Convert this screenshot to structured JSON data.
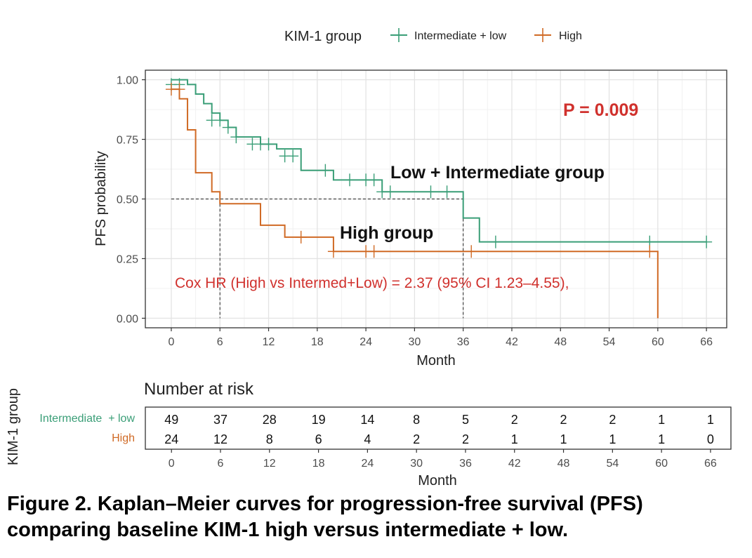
{
  "chart_data": {
    "type": "line",
    "legend": {
      "title": "KIM-1 group",
      "entries": [
        "Intermediate + low",
        "High"
      ],
      "position": "top"
    },
    "xlabel": "Month",
    "ylabel": "PFS probability",
    "x_ticks": [
      0,
      6,
      12,
      18,
      24,
      30,
      36,
      42,
      48,
      54,
      60,
      66
    ],
    "y_ticks": [
      0.0,
      0.25,
      0.5,
      0.75,
      1.0
    ],
    "y_tick_labels": [
      "0.00",
      "0.25",
      "0.50",
      "0.75",
      "1.00"
    ],
    "xlim": [
      -3.2,
      68.5
    ],
    "ylim": [
      -0.04,
      1.04
    ],
    "grid": true,
    "series": [
      {
        "name": "Intermediate + low",
        "color": "#3a9e77",
        "step_x": [
          0,
          2,
          3,
          4,
          5,
          6,
          7,
          8,
          11,
          13,
          16,
          20,
          26,
          36,
          38,
          66
        ],
        "step_y": [
          1.0,
          0.98,
          0.94,
          0.9,
          0.86,
          0.83,
          0.8,
          0.76,
          0.73,
          0.71,
          0.62,
          0.58,
          0.53,
          0.42,
          0.32,
          0.32
        ],
        "censor_x": [
          0,
          1,
          5,
          6,
          7,
          8,
          10,
          11,
          12,
          14,
          15,
          19,
          22,
          24,
          25,
          26,
          27,
          32,
          34,
          40,
          59,
          66
        ],
        "censor_y": [
          0.98,
          0.98,
          0.83,
          0.83,
          0.8,
          0.76,
          0.73,
          0.73,
          0.73,
          0.68,
          0.68,
          0.62,
          0.58,
          0.58,
          0.58,
          0.53,
          0.53,
          0.53,
          0.53,
          0.32,
          0.32,
          0.32
        ]
      },
      {
        "name": "High",
        "color": "#d06a25",
        "step_x": [
          0,
          1,
          2,
          3,
          5,
          6,
          11,
          14,
          20,
          60,
          60
        ],
        "step_y": [
          0.96,
          0.92,
          0.79,
          0.61,
          0.53,
          0.48,
          0.39,
          0.34,
          0.28,
          0.28,
          0.0
        ],
        "censor_x": [
          0,
          1,
          16,
          20,
          24,
          25,
          37,
          59
        ],
        "censor_y": [
          0.96,
          0.96,
          0.34,
          0.28,
          0.28,
          0.28,
          0.28,
          0.28
        ]
      }
    ],
    "median_lines": [
      {
        "x": 6,
        "y": 0.5
      },
      {
        "x": 36,
        "y": 0.5
      }
    ],
    "annotations": {
      "p_value": "P = 0.009",
      "low_label": "Low + Intermediate group",
      "high_label": "High group",
      "cox_hr": "Cox HR (High vs Intermed+Low) = 2.37 (95% CI 1.23–4.55),"
    },
    "risk_table": {
      "title": "Number at risk",
      "ylabel": "KIM-1 group",
      "xlabel": "Month",
      "times": [
        0,
        6,
        12,
        18,
        24,
        30,
        36,
        42,
        48,
        54,
        60,
        66
      ],
      "rows": [
        {
          "label": "Intermediate  + low",
          "color": "#3a9e77",
          "counts": [
            49,
            37,
            28,
            19,
            14,
            8,
            5,
            2,
            2,
            2,
            1,
            1
          ]
        },
        {
          "label": "High",
          "color": "#d06a25",
          "counts": [
            24,
            12,
            8,
            6,
            4,
            2,
            2,
            1,
            1,
            1,
            1,
            0
          ]
        }
      ]
    }
  },
  "caption": {
    "line1": "Figure 2. Kaplan–Meier curves for progression-free survival (PFS)",
    "line2": "comparing baseline KIM-1 high versus intermediate + low."
  },
  "colors": {
    "grid_major": "#e3e3e3",
    "grid_minor": "#f1f1f1",
    "annotation_red": "#d0312d",
    "axis_text": "#4d4d4d"
  }
}
